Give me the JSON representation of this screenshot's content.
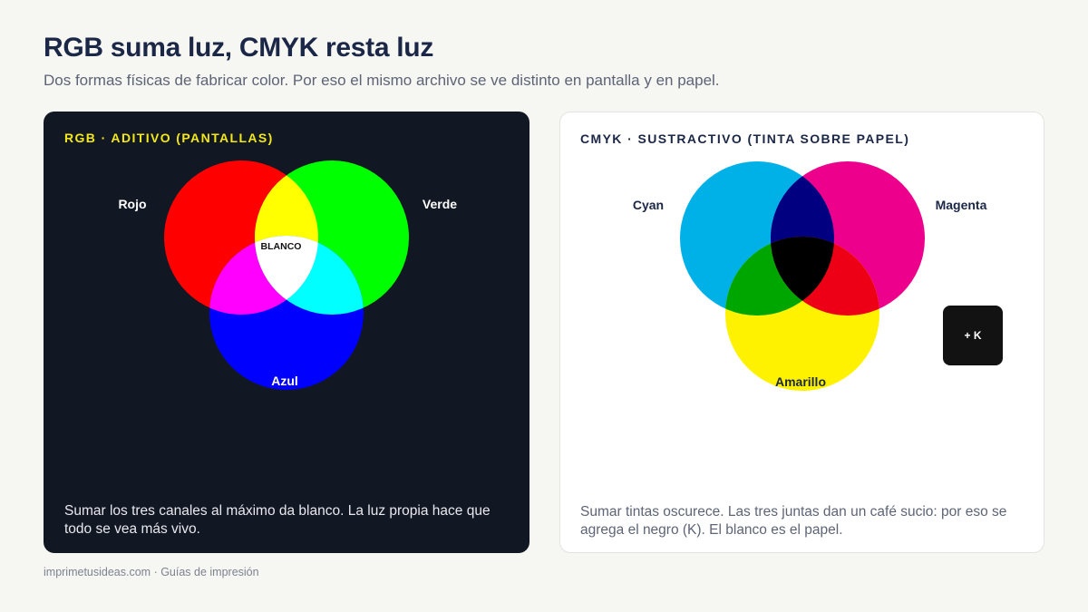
{
  "title": "RGB suma luz, CMYK resta luz",
  "subtitle": "Dos formas físicas de fabricar color. Por eso el mismo archivo se ve distinto en pantalla y en papel.",
  "rgb": {
    "heading": "RGB · ADITIVO (PANTALLAS)",
    "labels": {
      "red": "Rojo",
      "green": "Verde",
      "blue": "Azul",
      "center": "BLANCO"
    },
    "colors": {
      "red": "#ff0000",
      "green": "#00ff00",
      "blue": "#0000ff",
      "yellow": "#ffff00",
      "magenta": "#ff00ff",
      "cyan": "#00ffff",
      "white": "#ffffff"
    },
    "caption": "Sumar los tres canales al máximo da blanco. La luz propia hace que todo se vea más vivo."
  },
  "cmyk": {
    "heading": "CMYK · SUSTRACTIVO (TINTA SOBRE PAPEL)",
    "labels": {
      "cyan": "Cyan",
      "magenta": "Magenta",
      "yellow": "Amarillo",
      "key": "+ K"
    },
    "colors": {
      "cyan": "#00b1e8",
      "magenta": "#ec008c",
      "yellow": "#fff200",
      "blue": "#000080",
      "green": "#00a600",
      "red": "#ed0016",
      "black": "#000000"
    },
    "caption": "Sumar tintas oscurece. Las tres juntas dan un café sucio: por eso se agrega el negro (K). El blanco es el papel."
  },
  "footer": "imprimetusideas.com · Guías de impresión"
}
